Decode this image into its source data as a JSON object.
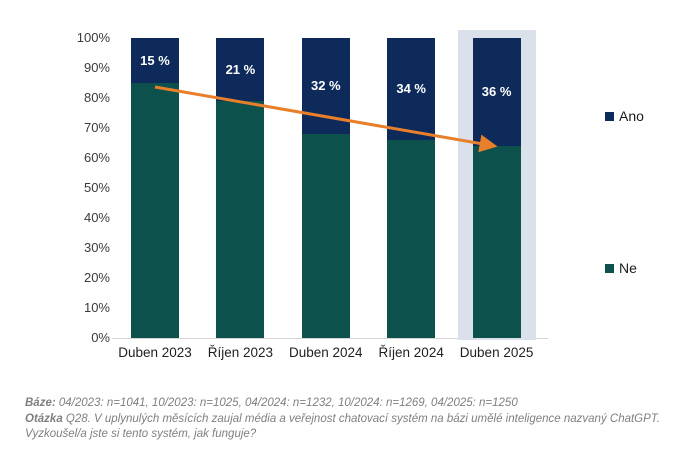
{
  "chart_data": {
    "type": "bar",
    "stacked": true,
    "categories": [
      "Duben 2023",
      "Říjen 2023",
      "Duben 2024",
      "Říjen 2024",
      "Duben 2025"
    ],
    "series": [
      {
        "name": "Ano",
        "color": "#0d2a5a",
        "values": [
          15,
          21,
          32,
          34,
          36
        ],
        "data_labels": [
          "15 %",
          "21 %",
          "32 %",
          "34 %",
          "36 %"
        ]
      },
      {
        "name": "Ne",
        "color": "#0c514c",
        "values": [
          85,
          79,
          68,
          66,
          64
        ],
        "data_labels": [
          "",
          "",
          "",
          "",
          ""
        ]
      }
    ],
    "y_ticks": [
      "100%",
      "90%",
      "80%",
      "70%",
      "60%",
      "50%",
      "40%",
      "30%",
      "20%",
      "10%",
      "0%"
    ],
    "ylim": [
      0,
      100
    ],
    "grid": false,
    "legend_position": "right",
    "highlighted_category": "Duben 2025",
    "highlight_color": "#dbe1eb",
    "trend_arrow": {
      "color": "#e87f2b",
      "from_category": "Duben 2023",
      "from_value": 85,
      "to_category": "Duben 2025",
      "to_value": 64
    }
  },
  "footer": {
    "baze_label": "Báze:",
    "baze_text": " 04/2023: n=1041, 10/2023: n=1025, 04/2024: n=1232, 10/2024: n=1269, 04/2025: n=1250",
    "otazka_label": "Otázka",
    "otazka_text": " Q28. V uplynulých měsících zaujal média a veřejnost chatovací systém na bázi umělé inteligence nazvaný ChatGPT.",
    "line3": "Vyzkoušel/a jste si tento systém, jak funguje?"
  }
}
